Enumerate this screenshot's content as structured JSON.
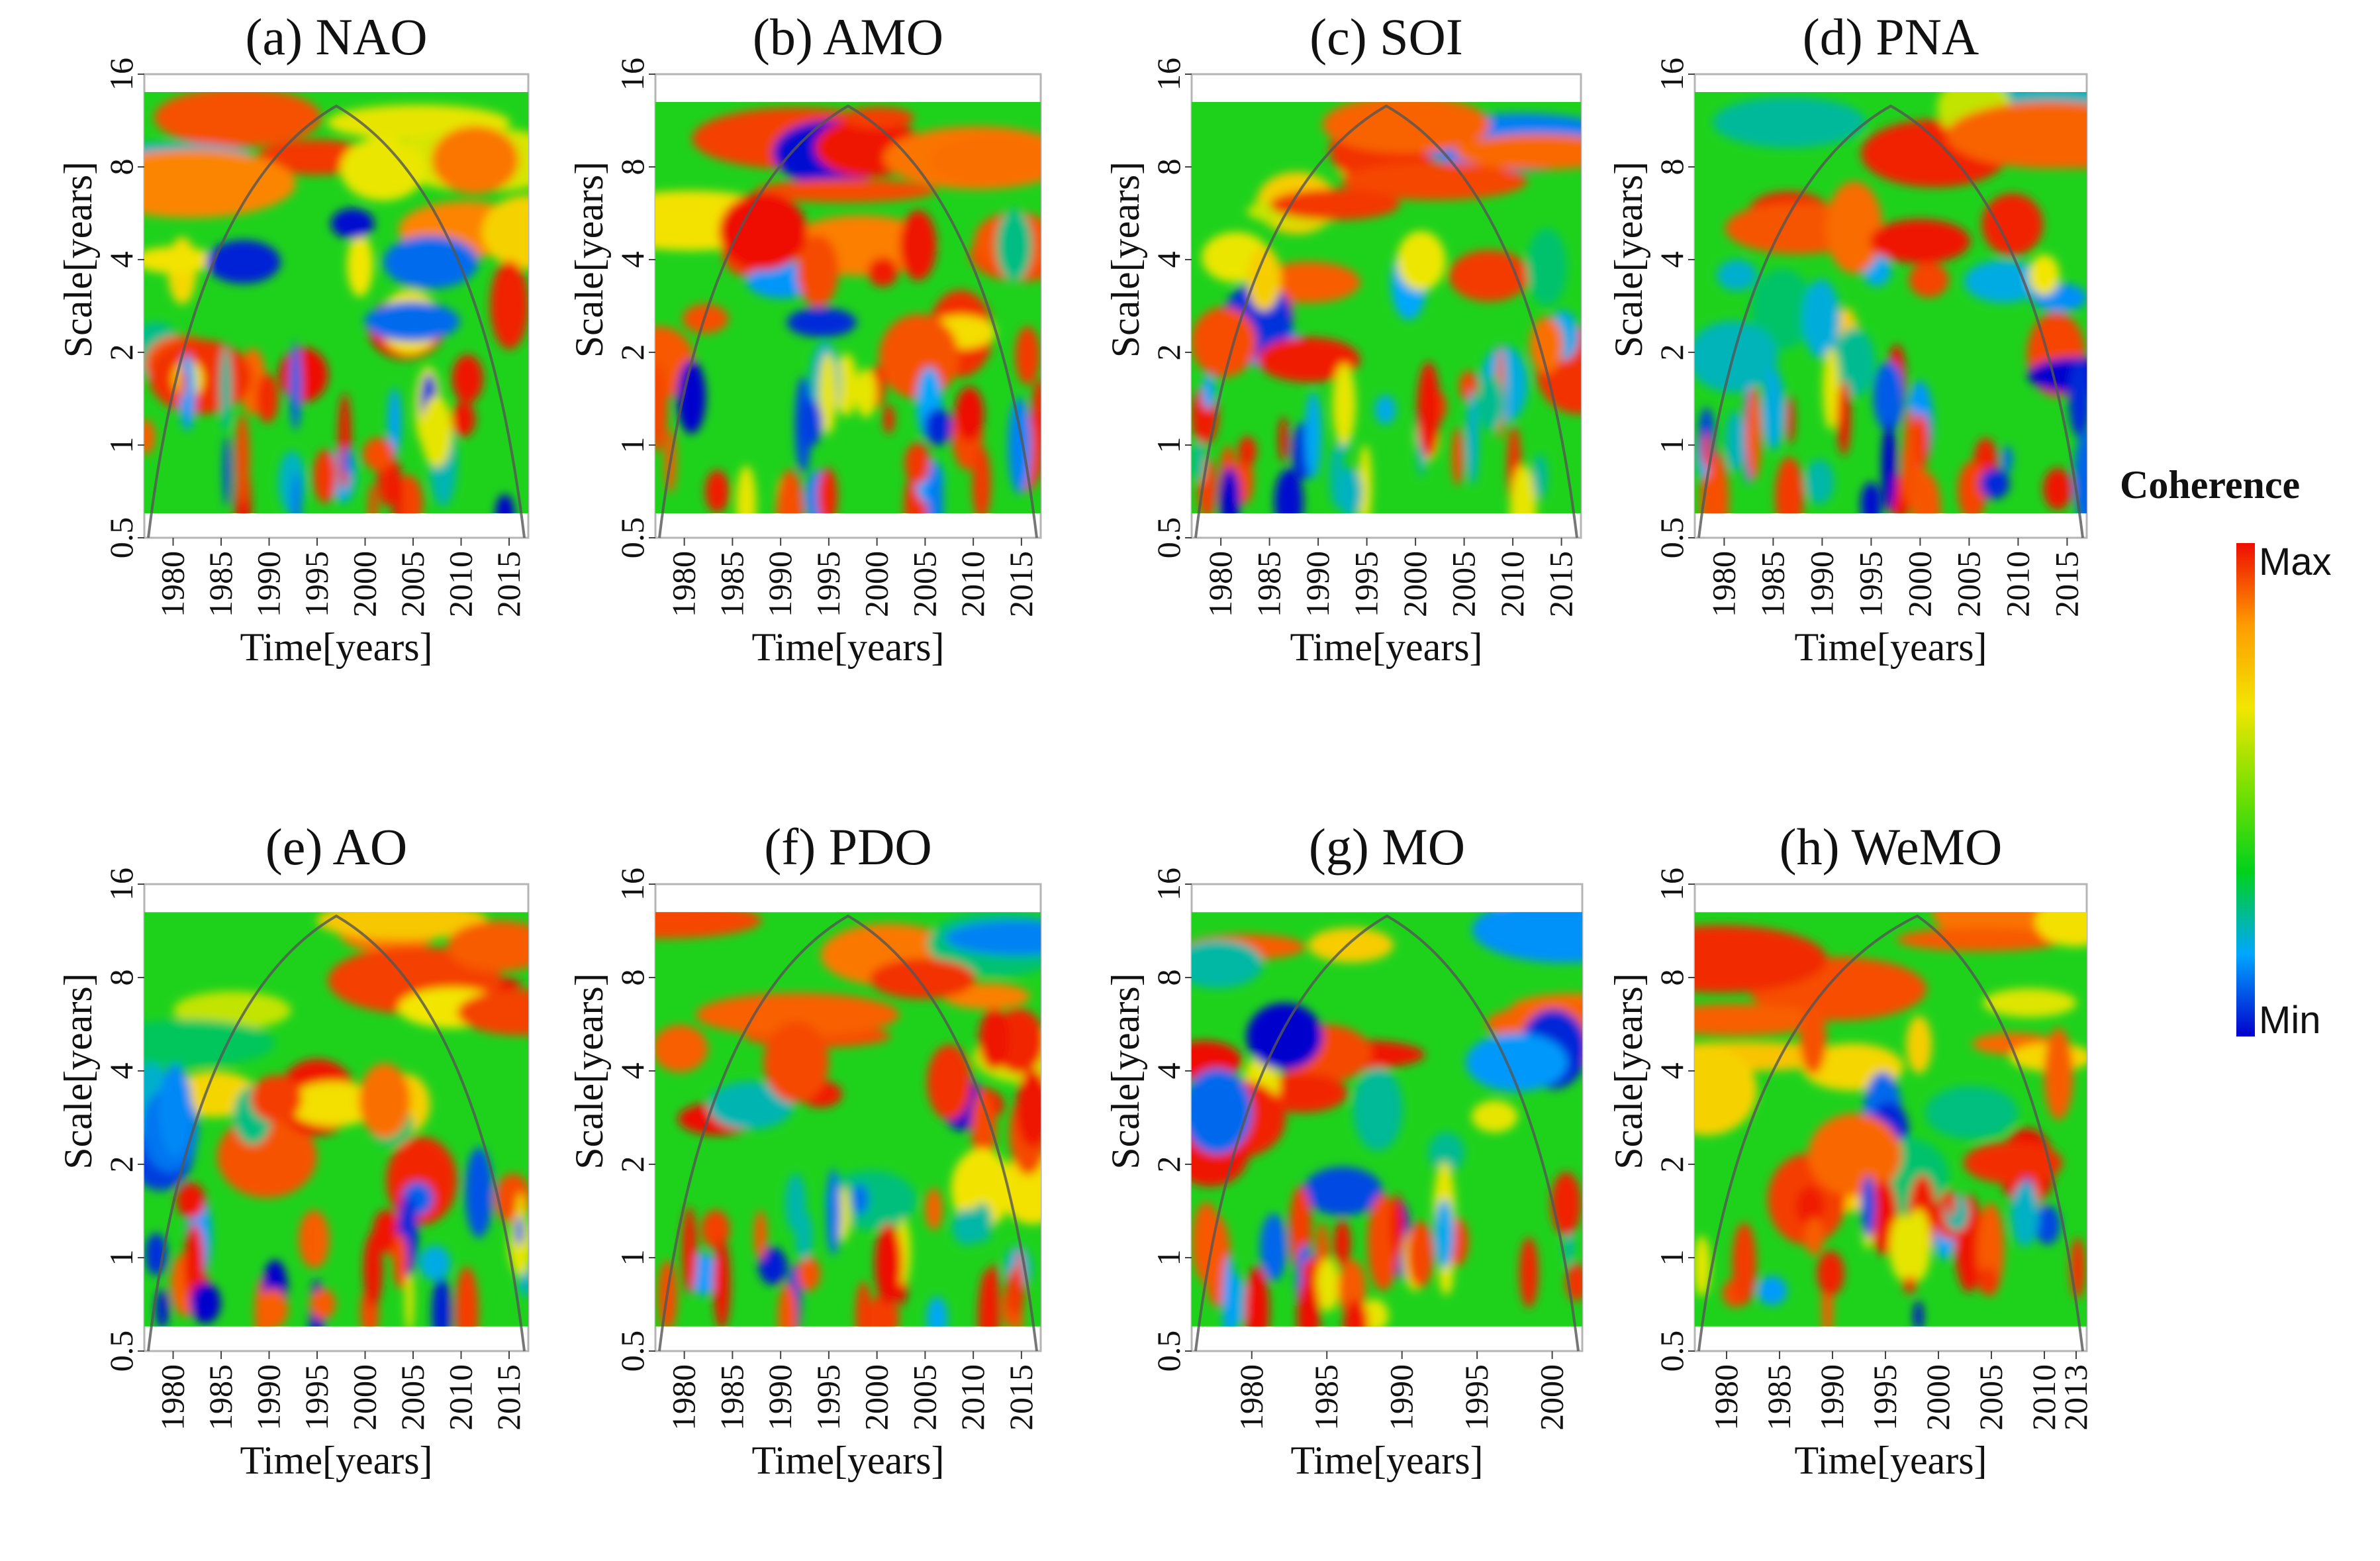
{
  "figure": {
    "colorbar": {
      "title": "Coherence",
      "max_label": "Max",
      "min_label": "Min",
      "colors": [
        "#0000cc",
        "#00a6ff",
        "#00d21c",
        "#78e000",
        "#f2e600",
        "#ff9c00",
        "#ee0d00"
      ]
    }
  },
  "chart_data": [
    {
      "type": "heatmap",
      "title": "(a) NAO",
      "xlabel": "Time[years]",
      "ylabel": "Scale[years]",
      "xticks": [
        "1980",
        "1985",
        "1990",
        "1995",
        "2000",
        "2005",
        "2010",
        "2015"
      ],
      "yticks": [
        "0.5",
        "1",
        "2",
        "4",
        "8",
        "16"
      ],
      "xlim": [
        1977,
        2017
      ],
      "ylim": [
        0.5,
        16
      ],
      "data_scale_range": [
        0.6,
        14
      ],
      "y_scale": "log2",
      "cone_of_influence_peak_year": 1997,
      "value_range": [
        "Min",
        "Max"
      ]
    },
    {
      "type": "heatmap",
      "title": "(b) AMO",
      "xlabel": "Time[years]",
      "ylabel": "Scale[years]",
      "xticks": [
        "1980",
        "1985",
        "1990",
        "1995",
        "2000",
        "2005",
        "2010",
        "2015"
      ],
      "yticks": [
        "0.5",
        "1",
        "2",
        "4",
        "8",
        "16"
      ],
      "xlim": [
        1977,
        2017
      ],
      "ylim": [
        0.5,
        16
      ],
      "data_scale_range": [
        0.6,
        13
      ],
      "y_scale": "log2",
      "cone_of_influence_peak_year": 1997,
      "value_range": [
        "Min",
        "Max"
      ]
    },
    {
      "type": "heatmap",
      "title": "(c) SOI",
      "xlabel": "Time[years]",
      "ylabel": "Scale[years]",
      "xticks": [
        "1980",
        "1985",
        "1990",
        "1995",
        "2000",
        "2005",
        "2010",
        "2015"
      ],
      "yticks": [
        "0.5",
        "1",
        "2",
        "4",
        "8",
        "16"
      ],
      "xlim": [
        1977,
        2017
      ],
      "ylim": [
        0.5,
        16
      ],
      "data_scale_range": [
        0.6,
        13
      ],
      "y_scale": "log2",
      "cone_of_influence_peak_year": 1997,
      "value_range": [
        "Min",
        "Max"
      ]
    },
    {
      "type": "heatmap",
      "title": "(d) PNA",
      "xlabel": "Time[years]",
      "ylabel": "Scale[years]",
      "xticks": [
        "1980",
        "1985",
        "1990",
        "1995",
        "2000",
        "2005",
        "2010",
        "2015"
      ],
      "yticks": [
        "0.5",
        "1",
        "2",
        "4",
        "8",
        "16"
      ],
      "xlim": [
        1977,
        2017
      ],
      "ylim": [
        0.5,
        16
      ],
      "data_scale_range": [
        0.6,
        14
      ],
      "y_scale": "log2",
      "cone_of_influence_peak_year": 1997,
      "value_range": [
        "Min",
        "Max"
      ]
    },
    {
      "type": "heatmap",
      "title": "(e) AO",
      "xlabel": "Time[years]",
      "ylabel": "Scale[years]",
      "xticks": [
        "1980",
        "1985",
        "1990",
        "1995",
        "2000",
        "2005",
        "2010",
        "2015"
      ],
      "yticks": [
        "0.5",
        "1",
        "2",
        "4",
        "8",
        "16"
      ],
      "xlim": [
        1977,
        2017
      ],
      "ylim": [
        0.5,
        16
      ],
      "data_scale_range": [
        0.6,
        13
      ],
      "y_scale": "log2",
      "cone_of_influence_peak_year": 1997,
      "value_range": [
        "Min",
        "Max"
      ]
    },
    {
      "type": "heatmap",
      "title": "(f) PDO",
      "xlabel": "Time[years]",
      "ylabel": "Scale[years]",
      "xticks": [
        "1980",
        "1985",
        "1990",
        "1995",
        "2000",
        "2005",
        "2010",
        "2015"
      ],
      "yticks": [
        "0.5",
        "1",
        "2",
        "4",
        "8",
        "16"
      ],
      "xlim": [
        1977,
        2017
      ],
      "ylim": [
        0.5,
        16
      ],
      "data_scale_range": [
        0.6,
        13
      ],
      "y_scale": "log2",
      "cone_of_influence_peak_year": 1997,
      "value_range": [
        "Min",
        "Max"
      ]
    },
    {
      "type": "heatmap",
      "title": "(g) MO",
      "xlabel": "Time[years]",
      "ylabel": "Scale[years]",
      "xticks": [
        "1980",
        "1985",
        "1990",
        "1995",
        "2000"
      ],
      "yticks": [
        "0.5",
        "1",
        "2",
        "4",
        "8",
        "16"
      ],
      "xlim": [
        1976,
        2002
      ],
      "ylim": [
        0.5,
        16
      ],
      "data_scale_range": [
        0.6,
        13
      ],
      "y_scale": "log2",
      "cone_of_influence_peak_year": 1989,
      "value_range": [
        "Min",
        "Max"
      ]
    },
    {
      "type": "heatmap",
      "title": "(h) WeMO",
      "xlabel": "Time[years]",
      "ylabel": "Scale[years]",
      "xticks": [
        "1980",
        "1985",
        "1990",
        "1995",
        "2000",
        "2005",
        "2010",
        "2013"
      ],
      "yticks": [
        "0.5",
        "1",
        "2",
        "4",
        "8",
        "16"
      ],
      "xlim": [
        1977,
        2014
      ],
      "ylim": [
        0.5,
        16
      ],
      "data_scale_range": [
        0.6,
        13
      ],
      "y_scale": "log2",
      "cone_of_influence_peak_year": 1998,
      "value_range": [
        "Min",
        "Max"
      ]
    }
  ]
}
